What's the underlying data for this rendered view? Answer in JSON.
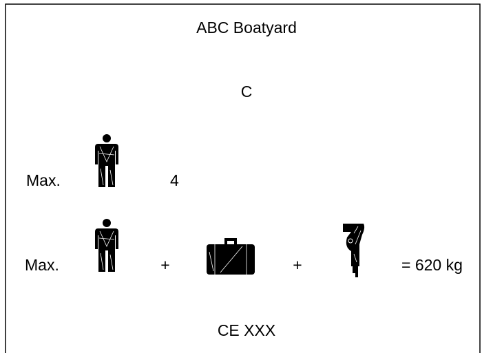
{
  "header": {
    "title": "ABC Boatyard"
  },
  "design_category": "C",
  "max_persons": {
    "label": "Max.",
    "value": "4"
  },
  "max_load": {
    "label": "Max.",
    "operators": [
      "+",
      "+"
    ],
    "total": "= 620 kg"
  },
  "footer": {
    "mark": "CE XXX"
  }
}
